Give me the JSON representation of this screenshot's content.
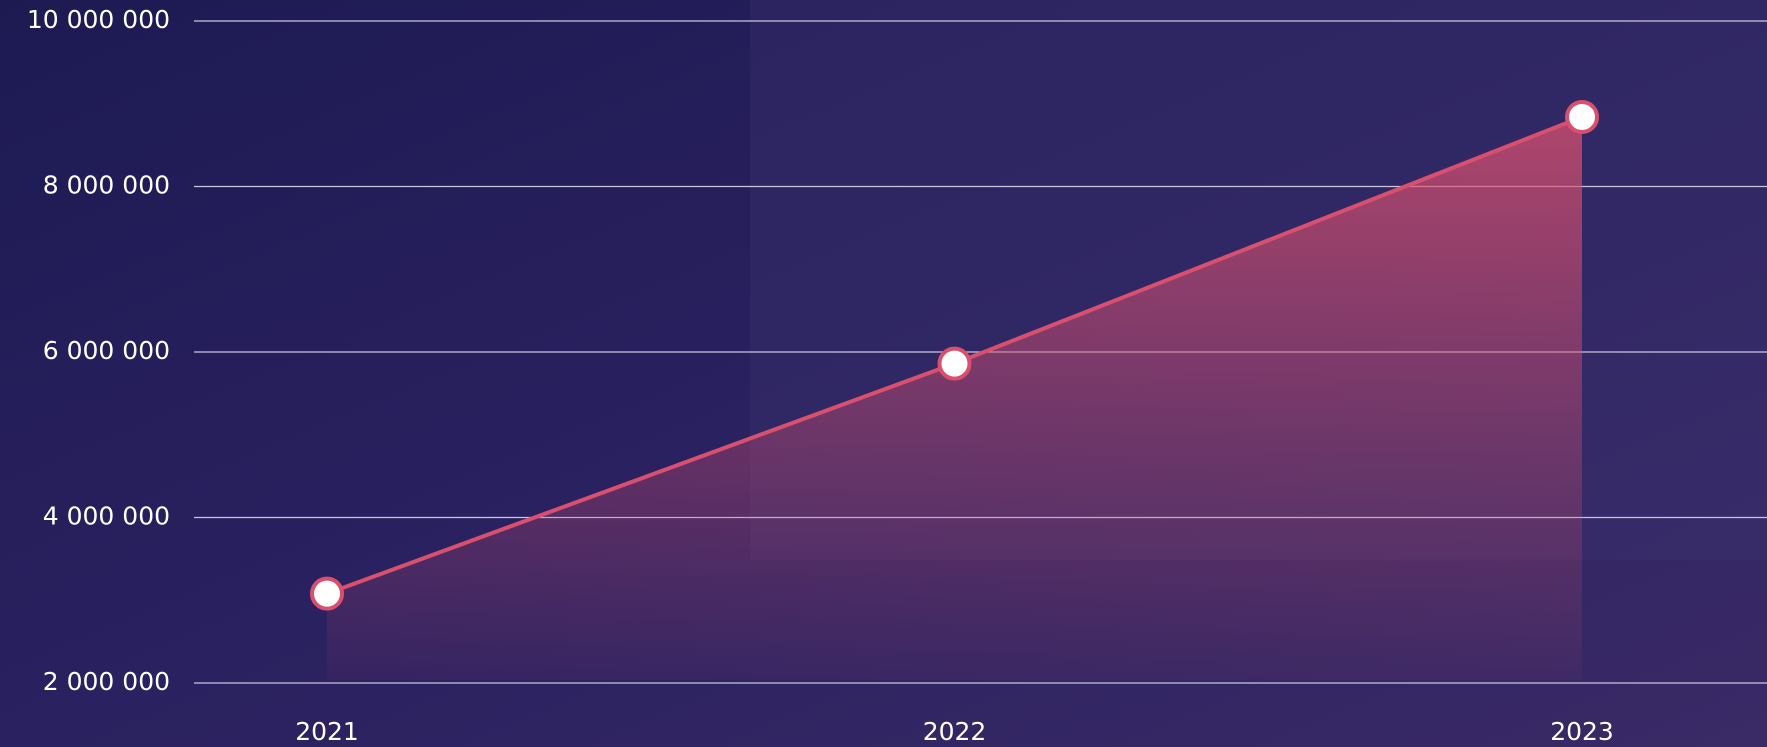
{
  "chart_data": {
    "type": "line",
    "categories": [
      "2021",
      "2022",
      "2023"
    ],
    "values": [
      3080000,
      5860000,
      8840000
    ],
    "color": "#d9506e",
    "ylim": [
      2000000,
      10000000
    ],
    "yticks": [
      {
        "value": 2000000,
        "label": "2 000 000"
      },
      {
        "value": 4000000,
        "label": "4 000 000"
      },
      {
        "value": 6000000,
        "label": "6 000 000"
      },
      {
        "value": 8000000,
        "label": "8 000 000"
      },
      {
        "value": 10000000,
        "label": "10 000 000"
      }
    ],
    "grid": true
  }
}
